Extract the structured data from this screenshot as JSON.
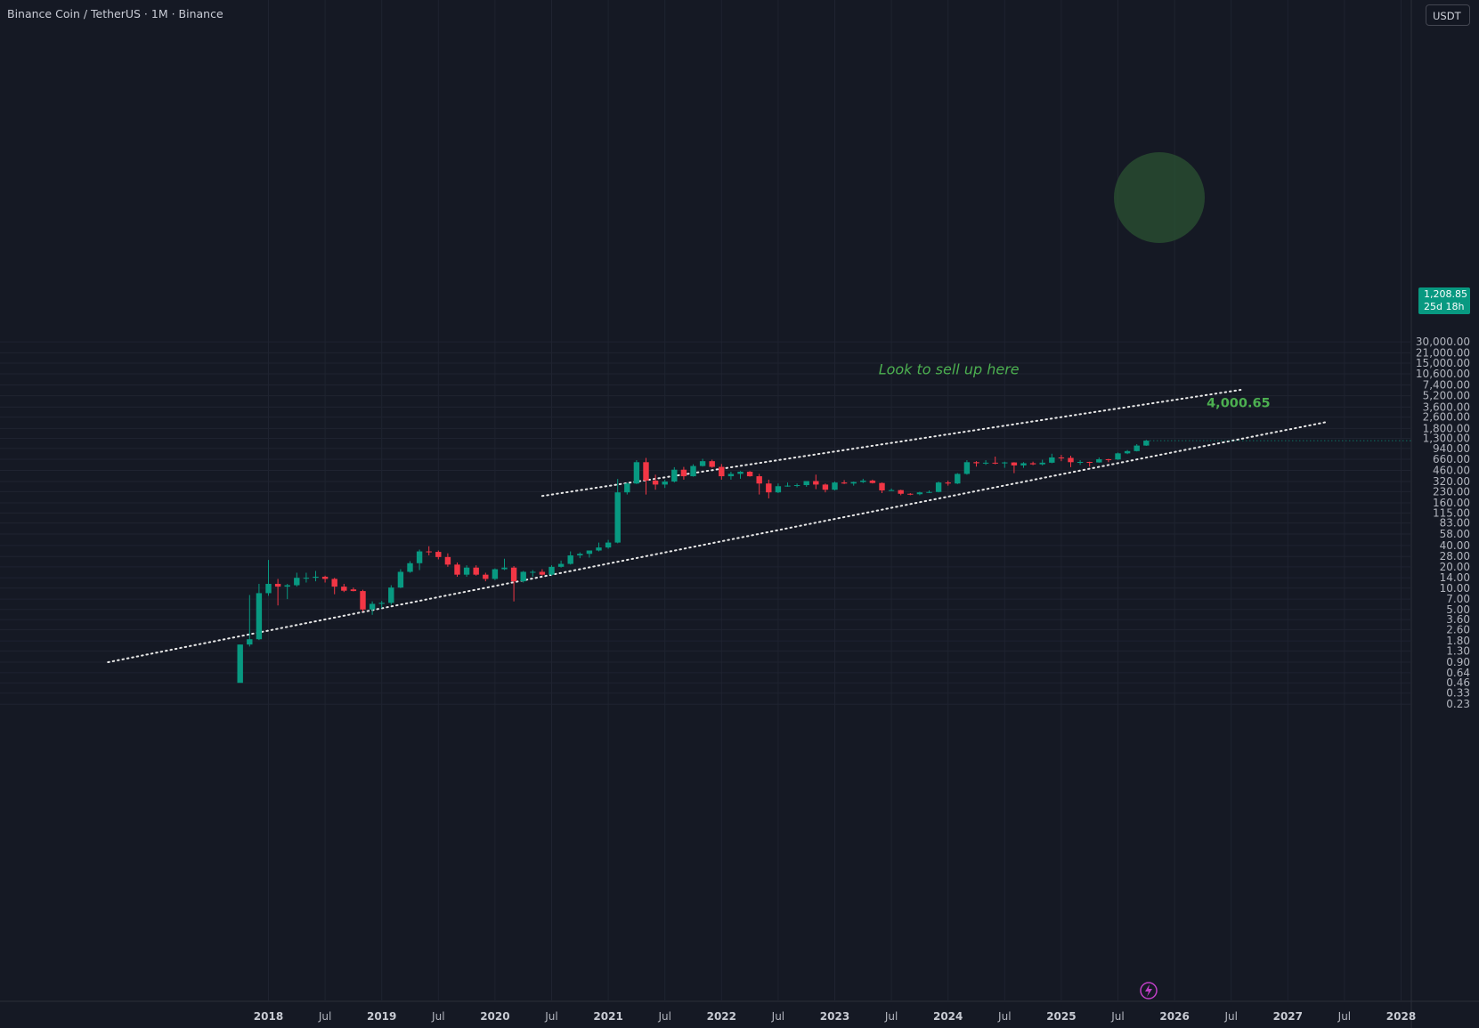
{
  "chart_title": "Binance Coin / TetherUS · 1M · Binance",
  "currency_button": "USDT",
  "last_price": "1,208.85",
  "countdown": "25d 18h",
  "colors": {
    "background": "#151924",
    "up": "#089981",
    "down": "#f23645",
    "trendline": "#e8e8e8",
    "annotation": "#4caf50",
    "target_circle": "#2e5a34"
  },
  "flash_icon": "lightning-icon",
  "chart_data": {
    "type": "candlestick",
    "scale": "log",
    "ylim": [
      0.23,
      30000
    ],
    "y_ticks": [
      "30,000.00",
      "21,000.00",
      "15,000.00",
      "10,600.00",
      "7,400.00",
      "5,200.00",
      "3,600.00",
      "2,600.00",
      "1,800.00",
      "1,300.00",
      "940.00",
      "660.00",
      "460.00",
      "320.00",
      "230.00",
      "160.00",
      "115.00",
      "83.00",
      "58.00",
      "40.00",
      "28.00",
      "20.00",
      "14.00",
      "10.00",
      "7.00",
      "5.00",
      "3.60",
      "2.60",
      "1.80",
      "1.30",
      "0.90",
      "0.64",
      "0.46",
      "0.33",
      "0.23"
    ],
    "x_ticks": [
      {
        "label": "2018",
        "year": true
      },
      {
        "label": "Jul",
        "year": false
      },
      {
        "label": "2019",
        "year": true
      },
      {
        "label": "Jul",
        "year": false
      },
      {
        "label": "2020",
        "year": true
      },
      {
        "label": "Jul",
        "year": false
      },
      {
        "label": "2021",
        "year": true
      },
      {
        "label": "Jul",
        "year": false
      },
      {
        "label": "2022",
        "year": true
      },
      {
        "label": "Jul",
        "year": false
      },
      {
        "label": "2023",
        "year": true
      },
      {
        "label": "Jul",
        "year": false
      },
      {
        "label": "2024",
        "year": true
      },
      {
        "label": "Jul",
        "year": false
      },
      {
        "label": "2025",
        "year": true
      },
      {
        "label": "Jul",
        "year": false
      },
      {
        "label": "2026",
        "year": true
      },
      {
        "label": "Jul",
        "year": false
      },
      {
        "label": "2027",
        "year": true
      },
      {
        "label": "Jul",
        "year": false
      },
      {
        "label": "2028",
        "year": true
      }
    ],
    "candles": [
      {
        "t": "2017-10",
        "o": 0.46,
        "h": 1.6,
        "l": 0.47,
        "c": 1.6
      },
      {
        "t": "2017-11",
        "o": 1.6,
        "h": 8.0,
        "l": 1.5,
        "c": 1.9
      },
      {
        "t": "2017-12",
        "o": 1.9,
        "h": 11.5,
        "l": 1.85,
        "c": 8.5
      },
      {
        "t": "2018-01",
        "o": 8.5,
        "h": 25.0,
        "l": 7.8,
        "c": 11.5
      },
      {
        "t": "2018-02",
        "o": 11.5,
        "h": 13.5,
        "l": 5.7,
        "c": 10.5
      },
      {
        "t": "2018-03",
        "o": 10.5,
        "h": 11.5,
        "l": 7.0,
        "c": 11.0
      },
      {
        "t": "2018-04",
        "o": 11.0,
        "h": 16.5,
        "l": 10.5,
        "c": 14.0
      },
      {
        "t": "2018-05",
        "o": 14.0,
        "h": 16.5,
        "l": 12.0,
        "c": 14.0
      },
      {
        "t": "2018-06",
        "o": 14.0,
        "h": 17.5,
        "l": 12.5,
        "c": 14.5
      },
      {
        "t": "2018-07",
        "o": 14.5,
        "h": 15.0,
        "l": 12.0,
        "c": 13.5
      },
      {
        "t": "2018-08",
        "o": 13.5,
        "h": 14.0,
        "l": 8.2,
        "c": 10.5
      },
      {
        "t": "2018-09",
        "o": 10.5,
        "h": 11.5,
        "l": 8.8,
        "c": 9.2
      },
      {
        "t": "2018-10",
        "o": 9.6,
        "h": 10.2,
        "l": 9.0,
        "c": 9.1
      },
      {
        "t": "2018-11",
        "o": 9.1,
        "h": 9.5,
        "l": 4.7,
        "c": 5.0
      },
      {
        "t": "2018-12",
        "o": 5.0,
        "h": 6.5,
        "l": 4.2,
        "c": 6.0
      },
      {
        "t": "2019-01",
        "o": 6.0,
        "h": 6.6,
        "l": 5.2,
        "c": 6.2
      },
      {
        "t": "2019-02",
        "o": 6.2,
        "h": 11.0,
        "l": 5.8,
        "c": 10.2
      },
      {
        "t": "2019-03",
        "o": 10.2,
        "h": 18.5,
        "l": 10.0,
        "c": 17.0
      },
      {
        "t": "2019-04",
        "o": 17.0,
        "h": 24.0,
        "l": 16.5,
        "c": 22.5
      },
      {
        "t": "2019-05",
        "o": 22.5,
        "h": 35.0,
        "l": 18.0,
        "c": 33.0
      },
      {
        "t": "2019-06",
        "o": 33.0,
        "h": 39.0,
        "l": 29.0,
        "c": 32.5
      },
      {
        "t": "2019-07",
        "o": 32.5,
        "h": 34.0,
        "l": 25.5,
        "c": 27.5
      },
      {
        "t": "2019-08",
        "o": 27.5,
        "h": 31.0,
        "l": 20.0,
        "c": 21.5
      },
      {
        "t": "2019-09",
        "o": 21.5,
        "h": 23.0,
        "l": 14.5,
        "c": 15.5
      },
      {
        "t": "2019-10",
        "o": 15.5,
        "h": 21.0,
        "l": 14.5,
        "c": 19.5
      },
      {
        "t": "2019-11",
        "o": 19.5,
        "h": 21.0,
        "l": 15.0,
        "c": 15.5
      },
      {
        "t": "2019-12",
        "o": 15.5,
        "h": 16.5,
        "l": 12.5,
        "c": 13.5
      },
      {
        "t": "2020-01",
        "o": 13.5,
        "h": 19.0,
        "l": 13.0,
        "c": 18.5
      },
      {
        "t": "2020-02",
        "o": 18.5,
        "h": 26.0,
        "l": 18.0,
        "c": 19.5
      },
      {
        "t": "2020-03",
        "o": 19.5,
        "h": 20.5,
        "l": 6.5,
        "c": 12.5
      },
      {
        "t": "2020-04",
        "o": 12.5,
        "h": 17.5,
        "l": 12.0,
        "c": 17.0
      },
      {
        "t": "2020-05",
        "o": 17.0,
        "h": 18.0,
        "l": 14.5,
        "c": 17.0
      },
      {
        "t": "2020-06",
        "o": 17.0,
        "h": 18.5,
        "l": 15.0,
        "c": 15.5
      },
      {
        "t": "2020-07",
        "o": 15.5,
        "h": 21.0,
        "l": 15.0,
        "c": 20.0
      },
      {
        "t": "2020-08",
        "o": 20.0,
        "h": 24.5,
        "l": 19.5,
        "c": 22.0
      },
      {
        "t": "2020-09",
        "o": 22.0,
        "h": 33.0,
        "l": 21.5,
        "c": 29.0
      },
      {
        "t": "2020-10",
        "o": 29.0,
        "h": 32.0,
        "l": 26.5,
        "c": 30.5
      },
      {
        "t": "2020-11",
        "o": 30.5,
        "h": 33.5,
        "l": 27.0,
        "c": 34.0
      },
      {
        "t": "2020-12",
        "o": 34.0,
        "h": 44.0,
        "l": 33.0,
        "c": 37.5
      },
      {
        "t": "2021-01",
        "o": 37.5,
        "h": 48.0,
        "l": 36.0,
        "c": 44.0
      },
      {
        "t": "2021-02",
        "o": 44.0,
        "h": 348.0,
        "l": 43.0,
        "c": 225.0
      },
      {
        "t": "2021-03",
        "o": 225.0,
        "h": 310.0,
        "l": 210.0,
        "c": 300.0
      },
      {
        "t": "2021-04",
        "o": 300.0,
        "h": 640.0,
        "l": 295.0,
        "c": 600.0
      },
      {
        "t": "2021-05",
        "o": 600.0,
        "h": 690.0,
        "l": 210.0,
        "c": 330.0
      },
      {
        "t": "2021-06",
        "o": 330.0,
        "h": 400.0,
        "l": 245.0,
        "c": 290.0
      },
      {
        "t": "2021-07",
        "o": 290.0,
        "h": 340.0,
        "l": 260.0,
        "c": 320.0
      },
      {
        "t": "2021-08",
        "o": 320.0,
        "h": 510.0,
        "l": 310.0,
        "c": 470.0
      },
      {
        "t": "2021-09",
        "o": 470.0,
        "h": 515.0,
        "l": 340.0,
        "c": 380.0
      },
      {
        "t": "2021-10",
        "o": 380.0,
        "h": 560.0,
        "l": 375.0,
        "c": 530.0
      },
      {
        "t": "2021-11",
        "o": 530.0,
        "h": 670.0,
        "l": 520.0,
        "c": 620.0
      },
      {
        "t": "2021-12",
        "o": 620.0,
        "h": 650.0,
        "l": 500.0,
        "c": 515.0
      },
      {
        "t": "2022-01",
        "o": 515.0,
        "h": 565.0,
        "l": 340.0,
        "c": 380.0
      },
      {
        "t": "2022-02",
        "o": 380.0,
        "h": 440.0,
        "l": 340.0,
        "c": 410.0
      },
      {
        "t": "2022-03",
        "o": 410.0,
        "h": 450.0,
        "l": 350.0,
        "c": 440.0
      },
      {
        "t": "2022-04",
        "o": 440.0,
        "h": 450.0,
        "l": 375.0,
        "c": 380.0
      },
      {
        "t": "2022-05",
        "o": 380.0,
        "h": 410.0,
        "l": 210.0,
        "c": 300.0
      },
      {
        "t": "2022-06",
        "o": 300.0,
        "h": 340.0,
        "l": 185.0,
        "c": 225.0
      },
      {
        "t": "2022-07",
        "o": 225.0,
        "h": 300.0,
        "l": 220.0,
        "c": 275.0
      },
      {
        "t": "2022-08",
        "o": 275.0,
        "h": 310.0,
        "l": 270.0,
        "c": 280.0
      },
      {
        "t": "2022-09",
        "o": 280.0,
        "h": 300.0,
        "l": 265.0,
        "c": 285.0
      },
      {
        "t": "2022-10",
        "o": 285.0,
        "h": 320.0,
        "l": 270.0,
        "c": 325.0
      },
      {
        "t": "2022-11",
        "o": 325.0,
        "h": 400.0,
        "l": 250.0,
        "c": 290.0
      },
      {
        "t": "2022-12",
        "o": 290.0,
        "h": 300.0,
        "l": 225.0,
        "c": 245.0
      },
      {
        "t": "2023-01",
        "o": 245.0,
        "h": 320.0,
        "l": 240.0,
        "c": 310.0
      },
      {
        "t": "2023-02",
        "o": 310.0,
        "h": 335.0,
        "l": 295.0,
        "c": 300.0
      },
      {
        "t": "2023-03",
        "o": 300.0,
        "h": 320.0,
        "l": 280.0,
        "c": 315.0
      },
      {
        "t": "2023-04",
        "o": 315.0,
        "h": 350.0,
        "l": 305.0,
        "c": 330.0
      },
      {
        "t": "2023-05",
        "o": 330.0,
        "h": 340.0,
        "l": 300.0,
        "c": 305.0
      },
      {
        "t": "2023-06",
        "o": 305.0,
        "h": 310.0,
        "l": 220.0,
        "c": 240.0
      },
      {
        "t": "2023-07",
        "o": 240.0,
        "h": 255.0,
        "l": 235.0,
        "c": 242.0
      },
      {
        "t": "2023-08",
        "o": 242.0,
        "h": 245.0,
        "l": 205.0,
        "c": 215.0
      },
      {
        "t": "2023-09",
        "o": 215.0,
        "h": 220.0,
        "l": 205.0,
        "c": 212.0
      },
      {
        "t": "2023-10",
        "o": 212.0,
        "h": 230.0,
        "l": 205.0,
        "c": 225.0
      },
      {
        "t": "2023-11",
        "o": 225.0,
        "h": 240.0,
        "l": 220.0,
        "c": 228.0
      },
      {
        "t": "2023-12",
        "o": 228.0,
        "h": 320.0,
        "l": 225.0,
        "c": 310.0
      },
      {
        "t": "2024-01",
        "o": 310.0,
        "h": 330.0,
        "l": 280.0,
        "c": 300.0
      },
      {
        "t": "2024-02",
        "o": 300.0,
        "h": 420.0,
        "l": 295.0,
        "c": 410.0
      },
      {
        "t": "2024-03",
        "o": 410.0,
        "h": 640.0,
        "l": 400.0,
        "c": 600.0
      },
      {
        "t": "2024-04",
        "o": 600.0,
        "h": 620.0,
        "l": 520.0,
        "c": 580.0
      },
      {
        "t": "2024-05",
        "o": 580.0,
        "h": 640.0,
        "l": 550.0,
        "c": 590.0
      },
      {
        "t": "2024-06",
        "o": 590.0,
        "h": 720.0,
        "l": 560.0,
        "c": 585.0
      },
      {
        "t": "2024-07",
        "o": 585.0,
        "h": 610.0,
        "l": 500.0,
        "c": 595.0
      },
      {
        "t": "2024-08",
        "o": 595.0,
        "h": 600.0,
        "l": 420.0,
        "c": 540.0
      },
      {
        "t": "2024-09",
        "o": 540.0,
        "h": 600.0,
        "l": 500.0,
        "c": 580.0
      },
      {
        "t": "2024-10",
        "o": 580.0,
        "h": 610.0,
        "l": 545.0,
        "c": 560.0
      },
      {
        "t": "2024-11",
        "o": 560.0,
        "h": 650.0,
        "l": 540.0,
        "c": 590.0
      },
      {
        "t": "2024-12",
        "o": 590.0,
        "h": 790.0,
        "l": 580.0,
        "c": 700.0
      },
      {
        "t": "2025-01",
        "o": 700.0,
        "h": 760.0,
        "l": 620.0,
        "c": 690.0
      },
      {
        "t": "2025-02",
        "o": 690.0,
        "h": 740.0,
        "l": 510.0,
        "c": 600.0
      },
      {
        "t": "2025-03",
        "o": 600.0,
        "h": 640.0,
        "l": 550.0,
        "c": 605.0
      },
      {
        "t": "2025-04",
        "o": 605.0,
        "h": 610.0,
        "l": 520.0,
        "c": 595.0
      },
      {
        "t": "2025-05",
        "o": 595.0,
        "h": 700.0,
        "l": 590.0,
        "c": 660.0
      },
      {
        "t": "2025-06",
        "o": 660.0,
        "h": 670.0,
        "l": 600.0,
        "c": 655.0
      },
      {
        "t": "2025-07",
        "o": 655.0,
        "h": 820.0,
        "l": 645.0,
        "c": 800.0
      },
      {
        "t": "2025-08",
        "o": 800.0,
        "h": 890.0,
        "l": 780.0,
        "c": 860.0
      },
      {
        "t": "2025-09",
        "o": 860.0,
        "h": 1080.0,
        "l": 850.0,
        "c": 1030.0
      },
      {
        "t": "2025-10",
        "o": 1030.0,
        "h": 1240.0,
        "l": 1020.0,
        "c": 1208.85
      }
    ],
    "trendlines": [
      {
        "style": "dotted",
        "from": {
          "t": "2016-08",
          "price": 0.9
        },
        "to": {
          "t": "2027-05",
          "price": 2200.0
        }
      },
      {
        "style": "dotted",
        "from": {
          "t": "2020-06",
          "price": 200.0
        },
        "to": {
          "t": "2026-08",
          "price": 6300.0
        }
      }
    ],
    "annotations": [
      {
        "text": "Look to sell up here",
        "t": "2024-06",
        "price": 12000.0
      },
      {
        "text": "4,000.65",
        "t": "2026-01",
        "price": 4000.65,
        "circle": true
      }
    ]
  }
}
